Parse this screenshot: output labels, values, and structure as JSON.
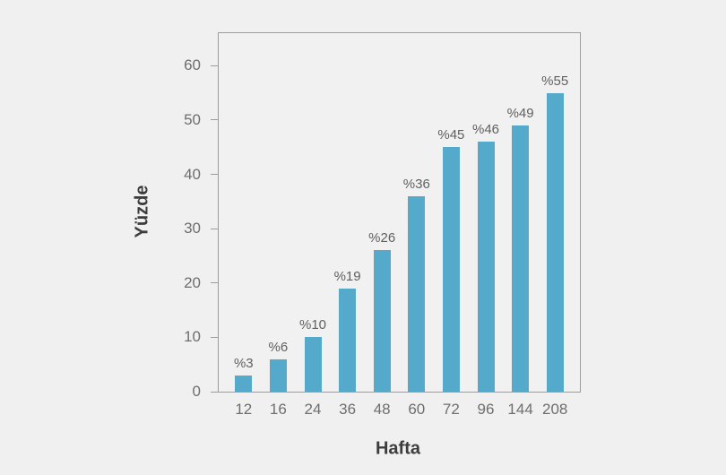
{
  "chart_data": {
    "type": "bar",
    "title": "",
    "categories": [
      "12",
      "16",
      "24",
      "36",
      "48",
      "60",
      "72",
      "96",
      "144",
      "208"
    ],
    "values": [
      3,
      6,
      10,
      19,
      26,
      36,
      45,
      46,
      49,
      55
    ],
    "bar_labels": [
      "%3",
      "%6",
      "%10",
      "%19",
      "%26",
      "%36",
      "%45",
      "%46",
      "%49",
      "%55"
    ],
    "xlabel": "Hafta",
    "ylabel": "Yüzde",
    "yticks": [
      0,
      10,
      20,
      30,
      40,
      50,
      60
    ],
    "ylim": [
      0,
      66
    ],
    "grid": false,
    "legend_position": "none",
    "bar_color": "#55aacb"
  },
  "colors": {
    "background": "#f0f0f1",
    "plot_background": "#f1f1f2",
    "axis_line": "#9c9c9c",
    "tick_label": "#6e6e6e",
    "bar_label": "#606060",
    "axis_title": "#3c3c3c"
  }
}
